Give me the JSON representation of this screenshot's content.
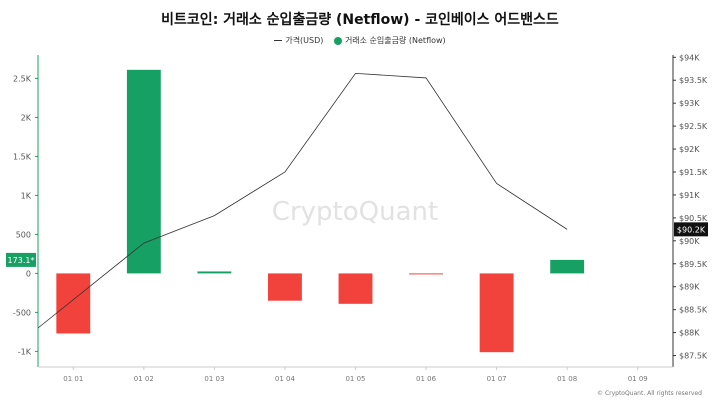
{
  "chart_data": {
    "type": "bar",
    "title": "비트코인: 거래소 순입출금량 (Netflow) - 코인베이스 어드밴스드",
    "legend": [
      {
        "name": "가격(USD)",
        "kind": "line",
        "color": "#333333"
      },
      {
        "name": "거래소 순입출금량 (Netflow)",
        "kind": "bar",
        "color": "#16a063"
      }
    ],
    "legend_placement": "top",
    "categories": [
      "01 01",
      "01 02",
      "01 03",
      "01 04",
      "01 05",
      "01 06",
      "01 07",
      "01 08",
      "01 09"
    ],
    "series": [
      {
        "name": "거래소 순입출금량 (Netflow)",
        "axis": "left",
        "values": [
          -770,
          2610,
          25,
          -350,
          -390,
          -10,
          -1010,
          173.1,
          null
        ]
      },
      {
        "name": "가격(USD)",
        "axis": "right",
        "type": "line",
        "points": [
          [
            -0.5,
            88100
          ],
          [
            1,
            89950
          ],
          [
            2,
            90550
          ],
          [
            3,
            91500
          ],
          [
            4,
            93650
          ],
          [
            5,
            93550
          ],
          [
            6,
            91250
          ],
          [
            7,
            90250
          ]
        ]
      }
    ],
    "y_left": {
      "ylim": [
        -1200,
        2800
      ],
      "ticks": [
        -1000,
        -500,
        0,
        500,
        1000,
        1500,
        2000,
        2500
      ],
      "tick_labels": [
        "-1K",
        "-500",
        "0",
        "500",
        "1K",
        "1.5K",
        "2K",
        "2.5K"
      ]
    },
    "y_right": {
      "ylim": [
        87250,
        94050
      ],
      "ticks": [
        87500,
        88000,
        88500,
        89000,
        89500,
        90000,
        90500,
        91000,
        91500,
        92000,
        92500,
        93000,
        93500,
        94000
      ],
      "tick_labels": [
        "$87.5K",
        "$88K",
        "$88.5K",
        "$89K",
        "$89.5K",
        "$90K",
        "$90.5K",
        "$91K",
        "$91.5K",
        "$92K",
        "$92.5K",
        "$93K",
        "$93.5K",
        "$94K"
      ]
    },
    "last_value_labels": {
      "left": "173.1*",
      "right": "$90.2K"
    },
    "colors": {
      "positive": "#16a063",
      "negative": "#f2423c",
      "price_line": "#333333",
      "flag_right": "#111111"
    },
    "grid": false,
    "watermark": "CryptoQuant",
    "copyright": "© CryptoQuant. All rights reserved"
  }
}
